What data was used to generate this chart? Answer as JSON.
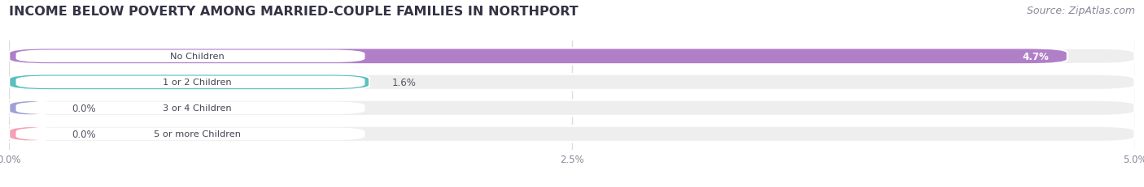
{
  "title": "INCOME BELOW POVERTY AMONG MARRIED-COUPLE FAMILIES IN NORTHPORT",
  "source": "Source: ZipAtlas.com",
  "categories": [
    "No Children",
    "1 or 2 Children",
    "3 or 4 Children",
    "5 or more Children"
  ],
  "values": [
    4.7,
    1.6,
    0.0,
    0.0
  ],
  "bar_colors": [
    "#b07fc7",
    "#5bbfc0",
    "#a0a0d8",
    "#f4a0b5"
  ],
  "xlim": [
    0,
    5.0
  ],
  "xticks": [
    0.0,
    2.5,
    5.0
  ],
  "xtick_labels": [
    "0.0%",
    "2.5%",
    "5.0%"
  ],
  "title_fontsize": 11.5,
  "source_fontsize": 9,
  "bar_height": 0.62,
  "background_color": "#ffffff",
  "bar_bg_color": "#eeeeee",
  "label_bg_color": "#ffffff",
  "text_color": "#444455",
  "value_label_threshold": 4.0,
  "zero_bar_width": 0.18
}
